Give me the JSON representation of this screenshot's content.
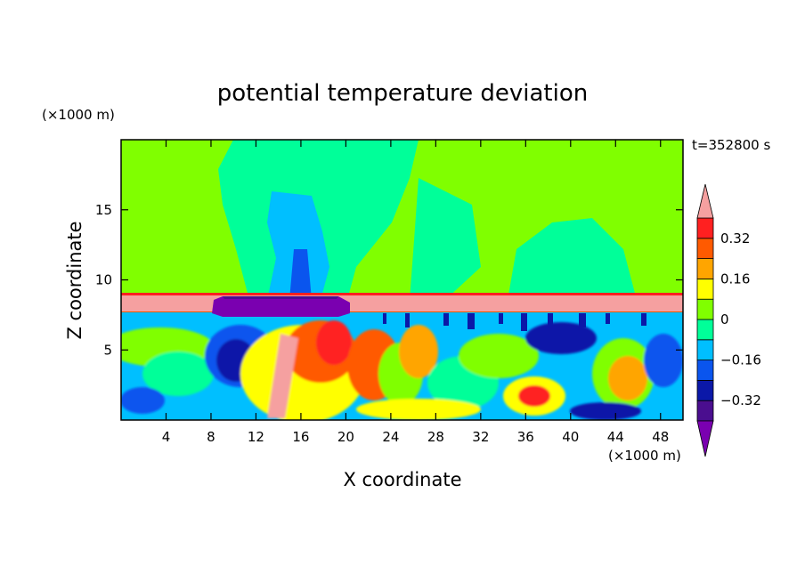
{
  "chart_data": {
    "type": "heatmap",
    "title": "potential temperature deviation",
    "xlabel": "X coordinate",
    "ylabel": "Z coordinate",
    "x_unit": "(×1000 m)",
    "y_unit": "(×1000 m)",
    "time_label": "t=352800 s",
    "xlim": [
      0,
      50
    ],
    "ylim": [
      0,
      20
    ],
    "x_ticks": [
      4,
      8,
      12,
      16,
      20,
      24,
      28,
      32,
      36,
      40,
      44,
      48
    ],
    "y_ticks": [
      5,
      10,
      15
    ],
    "colorbar": {
      "levels": [
        -0.4,
        -0.32,
        -0.24,
        -0.16,
        -0.08,
        0,
        0.08,
        0.16,
        0.24,
        0.32,
        0.4
      ],
      "tick_values": [
        -0.32,
        -0.16,
        0,
        0.16,
        0.32
      ],
      "tick_labels": [
        "−0.32",
        "−0.16",
        "0",
        "0.16",
        "0.32"
      ],
      "colors": [
        "#7a00b0",
        "#4a0e8f",
        "#0b18a8",
        "#0a55ee",
        "#00bfff",
        "#00ff99",
        "#80ff00",
        "#ffff00",
        "#ffa500",
        "#ff5a00",
        "#ff2020",
        "#f5a0a0"
      ],
      "extend": "both"
    },
    "grid": false
  }
}
